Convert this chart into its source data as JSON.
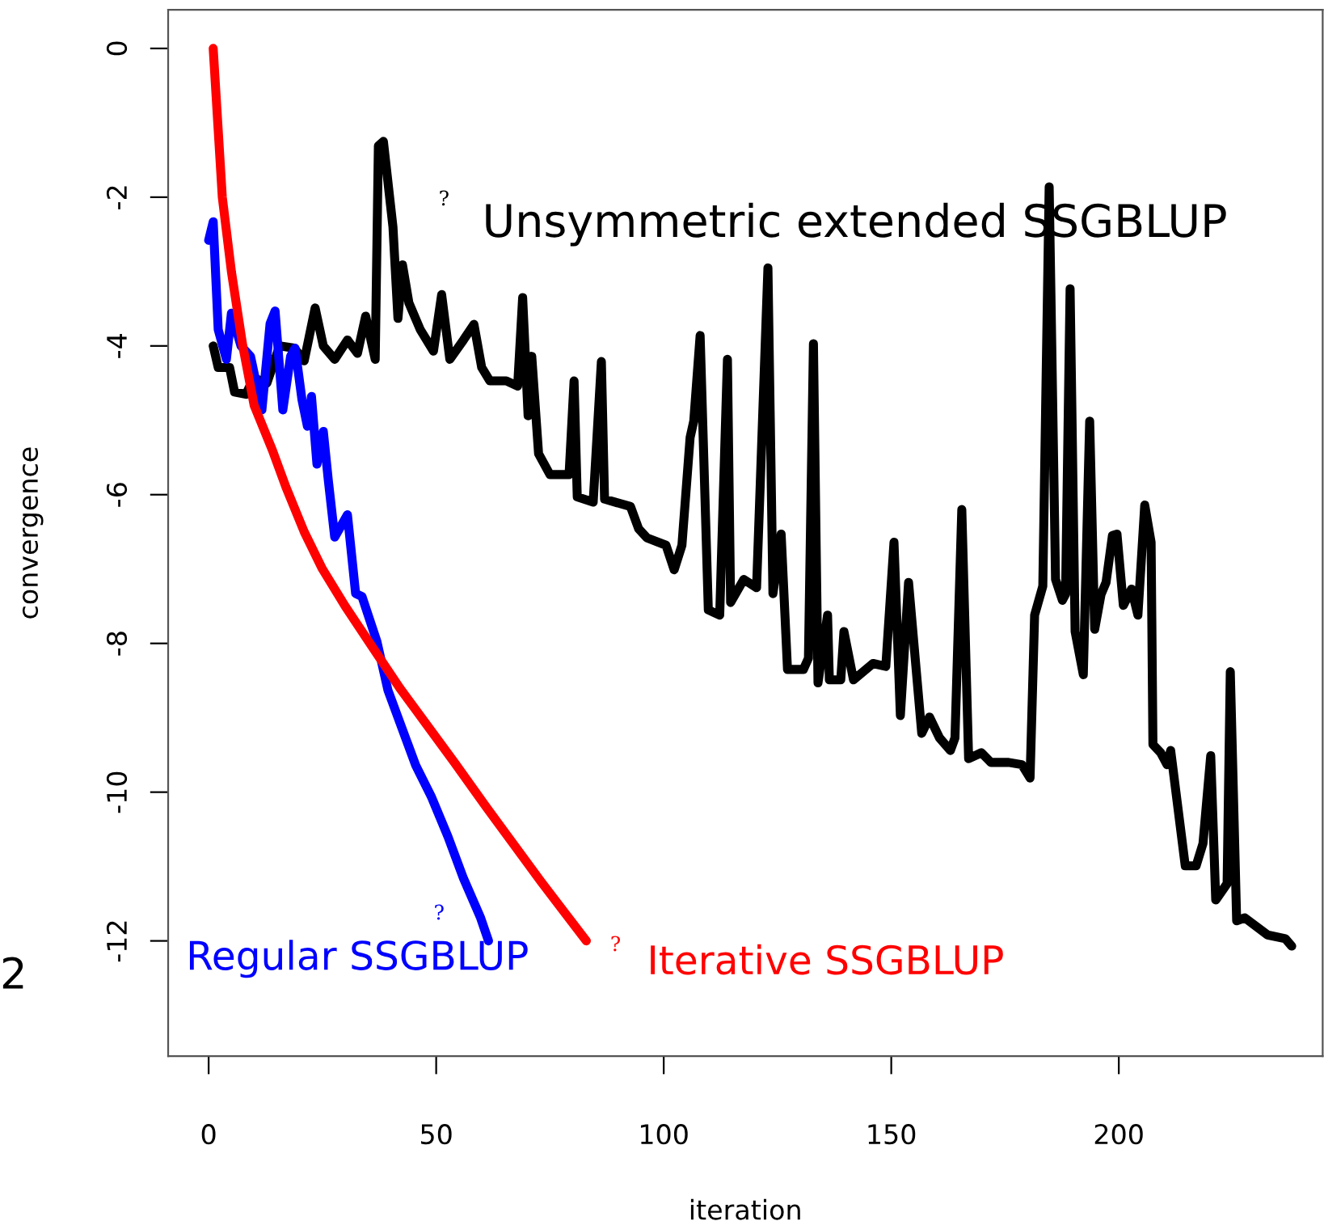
{
  "chart_data": {
    "type": "line",
    "xlabel": "iteration",
    "ylabel": "convergence",
    "xlim": [
      -8.9,
      244.8
    ],
    "ylim": [
      -13.55,
      0.52
    ],
    "xticks": [
      0,
      50,
      100,
      150,
      200
    ],
    "yticks": [
      0,
      -2,
      -4,
      -6,
      -8,
      -10,
      -12
    ],
    "grid": false,
    "legend": false,
    "marker": "none",
    "line_style": "solid",
    "series": [
      {
        "name": "Unsymmetric extended SSGBLUP",
        "color": "#000000",
        "x": [
          1,
          2.1,
          4.6,
          5.7,
          8.2,
          9.9,
          12.8,
          15.6,
          18.8,
          21,
          23.4,
          25.2,
          27.7,
          30.5,
          32.7,
          34.5,
          36.6,
          37.3,
          38.4,
          40.5,
          41.6,
          42.6,
          44,
          46.5,
          49.4,
          51.2,
          53,
          56,
          58.3,
          60,
          61.8,
          65.4,
          67.9,
          69,
          70.2,
          71,
          72.5,
          75,
          79.2,
          80.3,
          81,
          84.5,
          86.3,
          87,
          92.7,
          94.5,
          96.3,
          100.5,
          102.3,
          104,
          105.8,
          106.6,
          108,
          109.8,
          112.3,
          114,
          114.7,
          117.6,
          120.4,
          122.9,
          124,
          125.8,
          127.2,
          130.7,
          131.8,
          132.9,
          133.9,
          136,
          136.4,
          138.9,
          139.6,
          141.7,
          146,
          148.8,
          150.6,
          152,
          153.8,
          156.7,
          158.4,
          160.6,
          163,
          164,
          165.5,
          167,
          169.8,
          171.9,
          175.8,
          178.7,
          180.5,
          181.5,
          183.3,
          184.7,
          186.1,
          187.6,
          188.3,
          189.3,
          190.4,
          192.2,
          193.6,
          194.7,
          196.1,
          197.2,
          198.6,
          199.6,
          201,
          202.8,
          204.2,
          205.7,
          207.1,
          207.5,
          209.2,
          210.6,
          211.4,
          214.6,
          217,
          218.5,
          220.2,
          221.3,
          223.8,
          224.5,
          225.9,
          227.7,
          232.7,
          236.6,
          238
        ],
        "values": [
          -4,
          -4.29,
          -4.29,
          -4.62,
          -4.65,
          -4.43,
          -4.5,
          -4,
          -4.03,
          -4.2,
          -3.49,
          -4,
          -4.18,
          -3.92,
          -4.1,
          -3.6,
          -4.18,
          -1.31,
          -1.25,
          -2.4,
          -3.63,
          -2.91,
          -3.42,
          -3.78,
          -4.07,
          -3.31,
          -4.18,
          -3.92,
          -3.71,
          -4.29,
          -4.47,
          -4.47,
          -4.54,
          -3.35,
          -4.94,
          -4.14,
          -5.45,
          -5.73,
          -5.73,
          -4.47,
          -6.03,
          -6.1,
          -4.21,
          -6.06,
          -6.16,
          -6.46,
          -6.58,
          -6.68,
          -7.01,
          -6.68,
          -5.23,
          -5.01,
          -3.86,
          -7.55,
          -7.62,
          -4.18,
          -7.45,
          -7.14,
          -7.25,
          -2.95,
          -7.33,
          -6.53,
          -8.35,
          -8.35,
          -8.2,
          -3.97,
          -8.53,
          -7.62,
          -8.49,
          -8.49,
          -7.84,
          -8.49,
          -8.27,
          -8.31,
          -6.64,
          -8.97,
          -7.18,
          -9.21,
          -8.99,
          -9.27,
          -9.44,
          -9.27,
          -6.2,
          -9.55,
          -9.47,
          -9.6,
          -9.6,
          -9.63,
          -9.81,
          -7.62,
          -7.23,
          -1.86,
          -7.14,
          -7.42,
          -7.34,
          -3.23,
          -7.84,
          -8.42,
          -5.01,
          -7.81,
          -7.34,
          -7.18,
          -6.55,
          -6.53,
          -7.49,
          -7.27,
          -7.62,
          -6.14,
          -6.64,
          -9.36,
          -9.47,
          -9.63,
          -9.44,
          -10.99,
          -10.99,
          -10.69,
          -9.51,
          -11.45,
          -11.23,
          -8.38,
          -11.73,
          -11.69,
          -11.92,
          -11.97,
          -12.07
        ]
      },
      {
        "name": "Regular SSGBLUP",
        "color": "#0000ff",
        "x": [
          0,
          1,
          2.1,
          3.9,
          5,
          7.1,
          9.2,
          11.7,
          13.5,
          14.6,
          16.3,
          18,
          19,
          20.5,
          21.7,
          22.6,
          23.8,
          25.2,
          26.3,
          27.7,
          30.5,
          32.3,
          33.7,
          37,
          39.4,
          45.5,
          49,
          52.6,
          56,
          59.7,
          61.5
        ],
        "values": [
          -2.58,
          -2.33,
          -3.78,
          -4.18,
          -3.56,
          -4,
          -4.14,
          -4.86,
          -3.7,
          -3.53,
          -4.86,
          -4.14,
          -4.03,
          -4.72,
          -5.08,
          -4.68,
          -5.59,
          -5.15,
          -5.81,
          -6.57,
          -6.27,
          -7.33,
          -7.37,
          -7.98,
          -8.63,
          -9.64,
          -10.07,
          -10.6,
          -11.16,
          -11.68,
          -12
        ]
      },
      {
        "name": "Iterative SSGBLUP",
        "color": "#ff0000",
        "x": [
          1,
          2,
          3,
          5,
          7.5,
          10,
          14,
          17,
          21,
          25,
          30,
          36,
          42,
          48,
          54,
          61,
          67,
          73,
          78,
          83
        ],
        "values": [
          0,
          -1,
          -2,
          -3,
          -4,
          -4.8,
          -5.4,
          -5.9,
          -6.5,
          -7,
          -7.5,
          -8.05,
          -8.6,
          -9.1,
          -9.6,
          -10.2,
          -10.7,
          -11.2,
          -11.6,
          -12
        ]
      }
    ],
    "annotations": [
      "?",
      "?",
      "?",
      "2"
    ]
  }
}
